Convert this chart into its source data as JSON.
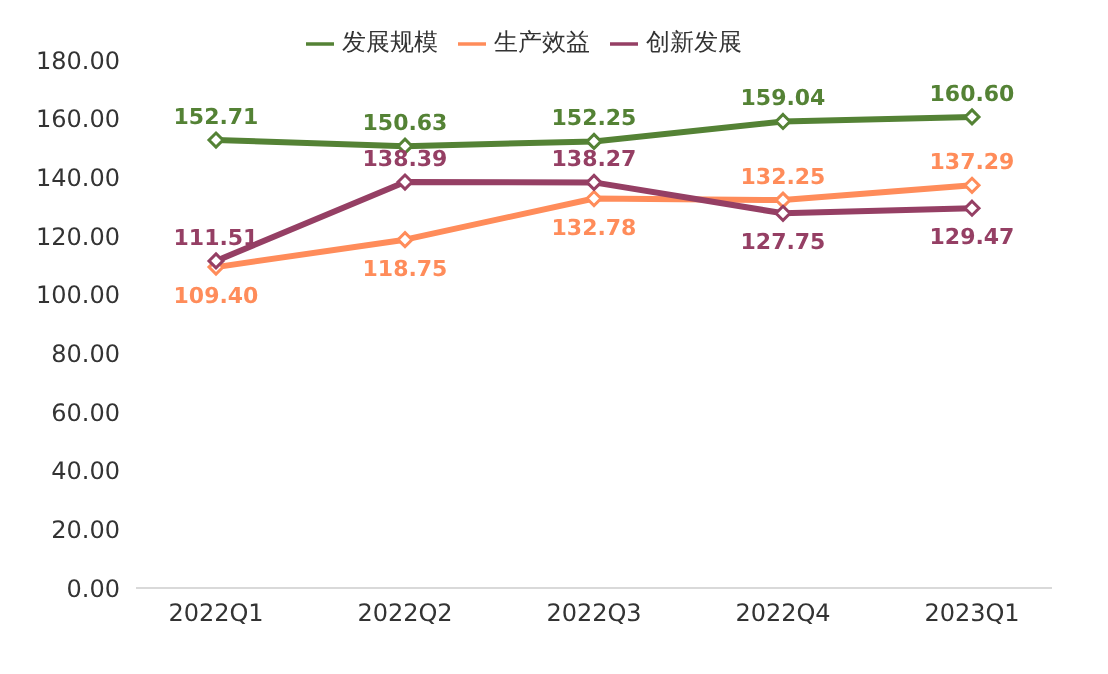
{
  "chart_data": {
    "type": "line",
    "categories": [
      "2022Q1",
      "2022Q2",
      "2022Q3",
      "2022Q4",
      "2023Q1"
    ],
    "series": [
      {
        "name": "发展规模",
        "color": "#548235",
        "values": [
          152.71,
          150.63,
          152.25,
          159.04,
          160.6
        ],
        "value_labels": [
          "152.71",
          "150.63",
          "152.25",
          "159.04",
          "160.60"
        ]
      },
      {
        "name": "生产效益",
        "color": "#ff8c5a",
        "values": [
          109.4,
          118.75,
          132.78,
          132.25,
          137.29
        ],
        "value_labels": [
          "109.40",
          "118.75",
          "132.78",
          "132.25",
          "137.29"
        ]
      },
      {
        "name": "创新发展",
        "color": "#953f64",
        "values": [
          111.51,
          138.39,
          138.27,
          127.75,
          129.47
        ],
        "value_labels": [
          "111.51",
          "138.39",
          "138.27",
          "127.75",
          "129.47"
        ]
      }
    ],
    "ylim": [
      0,
      180
    ],
    "yticks": [
      {
        "value": 0,
        "label": "0.00"
      },
      {
        "value": 20,
        "label": "20.00"
      },
      {
        "value": 40,
        "label": "40.00"
      },
      {
        "value": 60,
        "label": "60.00"
      },
      {
        "value": 80,
        "label": "80.00"
      },
      {
        "value": 100,
        "label": "100.00"
      },
      {
        "value": 120,
        "label": "120.00"
      },
      {
        "value": 140,
        "label": "140.00"
      },
      {
        "value": 160,
        "label": "160.00"
      },
      {
        "value": 180,
        "label": "180.00"
      }
    ],
    "grid": false,
    "legend": "top",
    "marker": "diamond",
    "line_style": "solid"
  }
}
